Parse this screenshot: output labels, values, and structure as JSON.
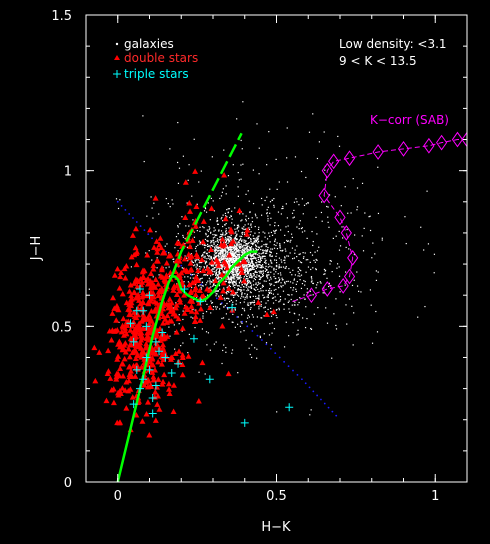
{
  "chart_data": {
    "type": "scatter",
    "title": "",
    "xlabel": "H−K",
    "ylabel": "J−H",
    "xlim": [
      -0.1,
      1.1
    ],
    "ylim": [
      0,
      1.5
    ],
    "x_ticks": [
      {
        "value": 0,
        "label": "0"
      },
      {
        "value": 0.5,
        "label": "0.5"
      },
      {
        "value": 1,
        "label": "1"
      }
    ],
    "y_ticks": [
      {
        "value": 0,
        "label": "0"
      },
      {
        "value": 0.5,
        "label": "0.5"
      },
      {
        "value": 1,
        "label": "1"
      },
      {
        "value": 1.5,
        "label": "1.5"
      }
    ],
    "legend": {
      "placement": "top-left",
      "entries": [
        {
          "label": "galaxies",
          "marker": ".",
          "color": "#ffffff"
        },
        {
          "label": "double stars",
          "marker": "triangle",
          "color": "#ff0000"
        },
        {
          "label": "triple stars",
          "marker": "+",
          "color": "#00ffff"
        }
      ]
    },
    "annotations": [
      {
        "text": "Low density: <3.1",
        "placement": "top-right",
        "color": "#ffffff"
      },
      {
        "text": "9 < K < 13.5",
        "placement": "top-right",
        "color": "#ffffff"
      },
      {
        "text": "K−corr (SAB)",
        "x": 0.79,
        "y": 1.15,
        "color": "#ff00ff"
      }
    ],
    "colors": {
      "background": "#000000",
      "axes": "#ffffff",
      "galaxies": "#ffffff",
      "double_stars": "#ff0000",
      "triple_stars": "#00ffff",
      "stellar_locus": "#00ff00",
      "kcorr": "#ff00ff",
      "reddening": "#1a1aff"
    },
    "series": [
      {
        "name": "galaxies",
        "kind": "cloud",
        "components": [
          {
            "x": 0.36,
            "y": 0.71,
            "sx": 0.05,
            "sy": 0.045,
            "n": 1500
          },
          {
            "x": 0.4,
            "y": 0.68,
            "sx": 0.12,
            "sy": 0.11,
            "n": 900
          },
          {
            "x": 0.48,
            "y": 0.78,
            "sx": 0.2,
            "sy": 0.18,
            "n": 350
          }
        ]
      },
      {
        "name": "double stars",
        "kind": "cloud",
        "components": [
          {
            "x": 0.08,
            "y": 0.45,
            "sx": 0.055,
            "sy": 0.11,
            "n": 380
          },
          {
            "x": 0.17,
            "y": 0.62,
            "sx": 0.07,
            "sy": 0.09,
            "n": 180
          },
          {
            "x": 0.3,
            "y": 0.72,
            "sx": 0.08,
            "sy": 0.12,
            "n": 70
          }
        ]
      },
      {
        "name": "triple stars",
        "kind": "points",
        "x": [
          0.04,
          0.05,
          0.06,
          0.07,
          0.08,
          0.09,
          0.1,
          0.11,
          0.12,
          0.13,
          0.06,
          0.09,
          0.12,
          0.15,
          0.05,
          0.08,
          0.1,
          0.14,
          0.17,
          0.19,
          0.24,
          0.29,
          0.36,
          0.4,
          0.54,
          0.21,
          0.26,
          0.11,
          0.07
        ],
        "y": [
          0.51,
          0.45,
          0.36,
          0.3,
          0.33,
          0.4,
          0.36,
          0.27,
          0.31,
          0.42,
          0.55,
          0.5,
          0.45,
          0.4,
          0.25,
          0.55,
          0.6,
          0.48,
          0.35,
          0.38,
          0.46,
          0.33,
          0.56,
          0.19,
          0.24,
          0.62,
          0.58,
          0.22,
          0.62
        ]
      },
      {
        "name": "stellar locus",
        "kind": "curve",
        "x": [
          0.0,
          0.04,
          0.08,
          0.11,
          0.14,
          0.16,
          0.17,
          0.18,
          0.19,
          0.2,
          0.22,
          0.24,
          0.26,
          0.28,
          0.3,
          0.32,
          0.34,
          0.36,
          0.38,
          0.4,
          0.42,
          0.44
        ],
        "y": [
          0.0,
          0.17,
          0.34,
          0.47,
          0.58,
          0.64,
          0.66,
          0.66,
          0.65,
          0.62,
          0.6,
          0.59,
          0.58,
          0.59,
          0.61,
          0.64,
          0.66,
          0.69,
          0.71,
          0.73,
          0.74,
          0.74
        ]
      },
      {
        "name": "giant branch",
        "kind": "curve",
        "x": [
          0.17,
          0.2,
          0.24,
          0.27,
          0.3,
          0.33,
          0.36,
          0.39
        ],
        "y": [
          0.66,
          0.74,
          0.82,
          0.88,
          0.94,
          1.0,
          1.06,
          1.12
        ]
      },
      {
        "name": "K-corr (SAB)",
        "kind": "track",
        "x": [
          1.1,
          1.07,
          1.02,
          0.98,
          0.9,
          0.82,
          0.73,
          0.68,
          0.66,
          0.65,
          0.7,
          0.72,
          0.74,
          0.73,
          0.71,
          0.66,
          0.61,
          0.55
        ],
        "y": [
          1.1,
          1.1,
          1.09,
          1.08,
          1.07,
          1.06,
          1.04,
          1.03,
          1.0,
          0.92,
          0.85,
          0.8,
          0.72,
          0.66,
          0.63,
          0.62,
          0.6,
          0.58
        ],
        "markers": [
          0,
          1,
          2,
          3,
          4,
          5,
          6,
          7,
          8,
          9,
          10,
          11,
          12,
          13,
          14,
          15,
          16
        ]
      },
      {
        "name": "reddening",
        "kind": "line",
        "x": [
          0.0,
          0.12,
          0.28,
          0.44,
          0.58,
          0.7
        ],
        "y": [
          0.9,
          0.77,
          0.62,
          0.47,
          0.33,
          0.2
        ]
      }
    ]
  }
}
